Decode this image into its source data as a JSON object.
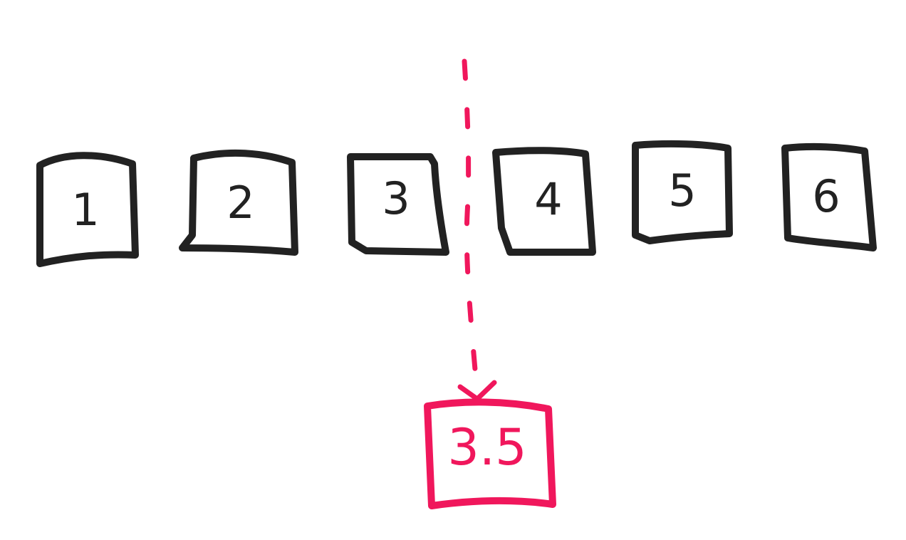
{
  "boxes": [
    "1",
    "2",
    "3",
    "4",
    "5",
    "6"
  ],
  "result": "3.5",
  "colors": {
    "ink": "#222222",
    "accent": "#f0175c",
    "background": "#ffffff"
  }
}
